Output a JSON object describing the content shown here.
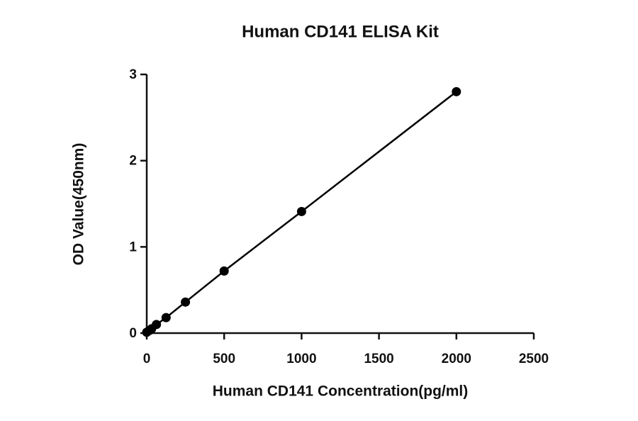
{
  "chart_data": {
    "type": "line",
    "title": "Human CD141 ELISA Kit",
    "x_label": "Human CD141 Concentration(pg/ml)",
    "y_label": "OD Value(450nm)",
    "x": [
      0,
      15.6,
      31.25,
      62.5,
      125,
      250,
      500,
      1000,
      2000
    ],
    "series": [
      {
        "name": "Human CD141",
        "color": "#000000",
        "values": [
          0.01,
          0.03,
          0.05,
          0.1,
          0.18,
          0.36,
          0.72,
          1.41,
          2.8
        ]
      }
    ],
    "xlim": [
      0,
      2500
    ],
    "xticks": [
      0,
      500,
      1000,
      1500,
      2000,
      2500
    ],
    "ylim": [
      0,
      3
    ],
    "yticks": [
      0,
      1,
      2,
      3
    ],
    "grid": false,
    "markers": true
  }
}
